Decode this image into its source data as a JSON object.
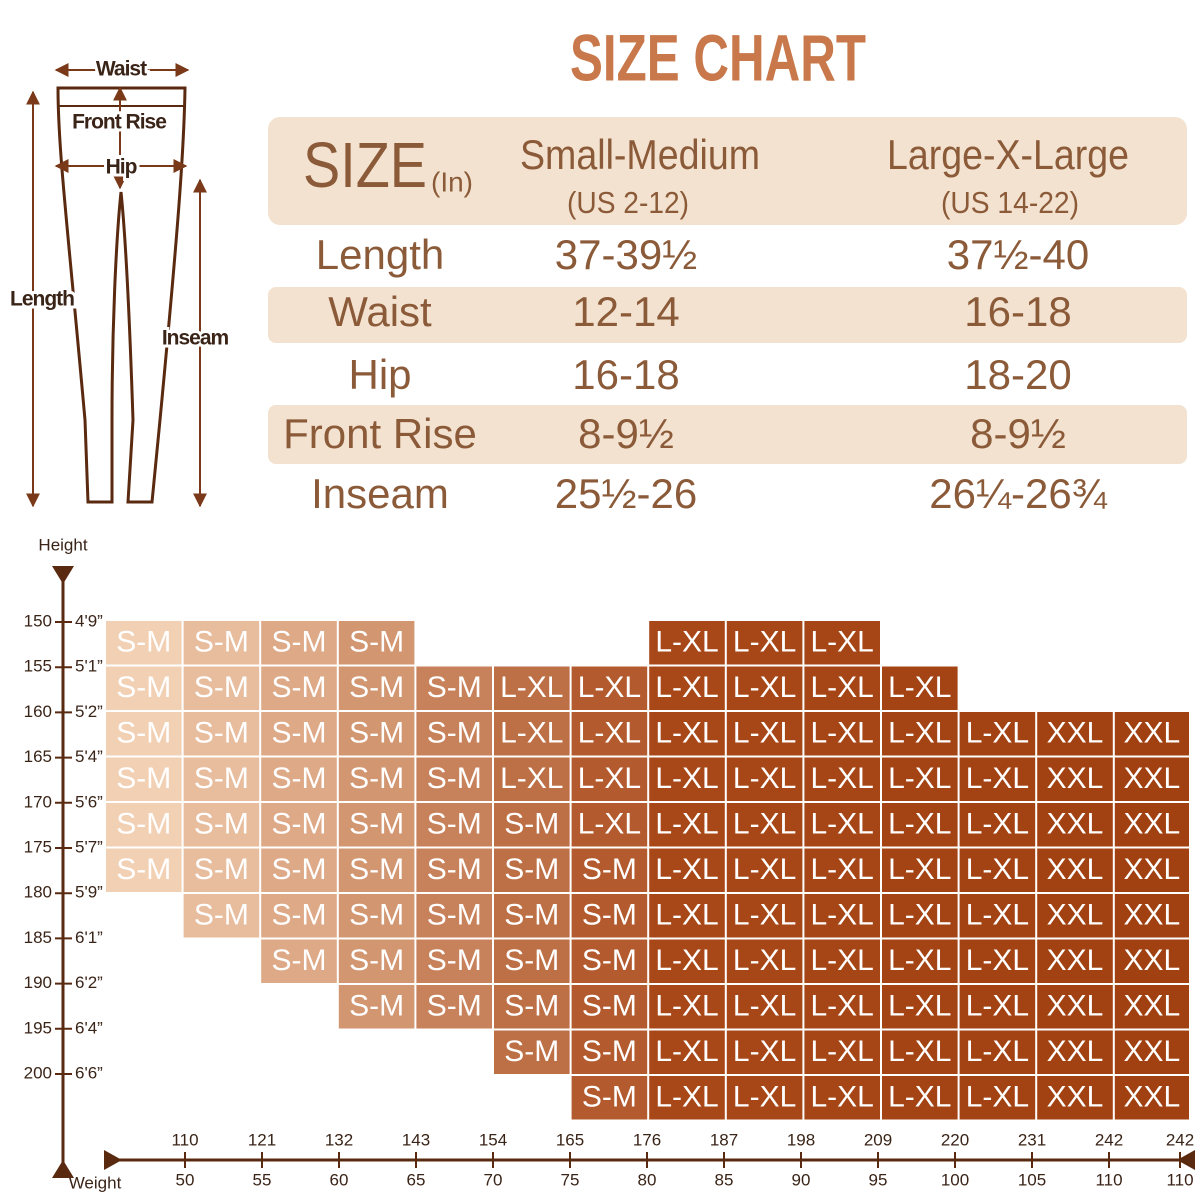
{
  "title": "SIZE CHART",
  "diagram": {
    "waist": "Waist",
    "front_rise": "Front Rise",
    "hip": "Hip",
    "length": "Length",
    "inseam": "Inseam"
  },
  "table": {
    "size": "SIZE",
    "unit": "(In)",
    "columns": [
      {
        "name": "Small-Medium",
        "sub": "(US 2-12)"
      },
      {
        "name": "Large-X-Large",
        "sub": "(US 14-22)"
      }
    ],
    "rows": [
      [
        "Length",
        "37-39½",
        "37½-40"
      ],
      [
        "Waist",
        "12-14",
        "16-18"
      ],
      [
        "Hip",
        "16-18",
        "18-20"
      ],
      [
        "Front Rise",
        "8-9½",
        "8-9½"
      ],
      [
        "Inseam",
        "25½-26",
        "26¼-26¾"
      ]
    ]
  },
  "grid": {
    "height_label": "Height",
    "weight_label": "Weight",
    "heights": [
      {
        "cm": "150",
        "ft": "4'9”"
      },
      {
        "cm": "155",
        "ft": "5'1”"
      },
      {
        "cm": "160",
        "ft": "5'2”"
      },
      {
        "cm": "165",
        "ft": "5'4”"
      },
      {
        "cm": "170",
        "ft": "5'6”"
      },
      {
        "cm": "175",
        "ft": "5'7”"
      },
      {
        "cm": "180",
        "ft": "5'9”"
      },
      {
        "cm": "185",
        "ft": "6'1”"
      },
      {
        "cm": "190",
        "ft": "6'2”"
      },
      {
        "cm": "195",
        "ft": "6'4”"
      },
      {
        "cm": "200",
        "ft": "6'6”"
      }
    ],
    "weights": [
      {
        "lb": "110",
        "kg": "50"
      },
      {
        "lb": "121",
        "kg": "55"
      },
      {
        "lb": "132",
        "kg": "60"
      },
      {
        "lb": "143",
        "kg": "65"
      },
      {
        "lb": "154",
        "kg": "70"
      },
      {
        "lb": "165",
        "kg": "75"
      },
      {
        "lb": "176",
        "kg": "80"
      },
      {
        "lb": "187",
        "kg": "85"
      },
      {
        "lb": "198",
        "kg": "90"
      },
      {
        "lb": "209",
        "kg": "95"
      },
      {
        "lb": "220",
        "kg": "100"
      },
      {
        "lb": "231",
        "kg": "105"
      },
      {
        "lb": "242",
        "kg": "110"
      },
      {
        "lb": "242",
        "kg": "110"
      }
    ],
    "rows": [
      [
        "S-M",
        "S-M",
        "S-M",
        "S-M",
        null,
        null,
        null,
        "L-XL",
        "L-XL",
        "L-XL",
        null,
        null,
        null,
        null
      ],
      [
        "S-M",
        "S-M",
        "S-M",
        "S-M",
        "S-M",
        "L-XL",
        "L-XL",
        "L-XL",
        "L-XL",
        "L-XL",
        "L-XL",
        null,
        null,
        null
      ],
      [
        "S-M",
        "S-M",
        "S-M",
        "S-M",
        "S-M",
        "L-XL",
        "L-XL",
        "L-XL",
        "L-XL",
        "L-XL",
        "L-XL",
        "L-XL",
        "XXL",
        "XXL"
      ],
      [
        "S-M",
        "S-M",
        "S-M",
        "S-M",
        "S-M",
        "L-XL",
        "L-XL",
        "L-XL",
        "L-XL",
        "L-XL",
        "L-XL",
        "L-XL",
        "XXL",
        "XXL"
      ],
      [
        "S-M",
        "S-M",
        "S-M",
        "S-M",
        "S-M",
        "S-M",
        "L-XL",
        "L-XL",
        "L-XL",
        "L-XL",
        "L-XL",
        "L-XL",
        "XXL",
        "XXL"
      ],
      [
        "S-M",
        "S-M",
        "S-M",
        "S-M",
        "S-M",
        "S-M",
        "S-M",
        "L-XL",
        "L-XL",
        "L-XL",
        "L-XL",
        "L-XL",
        "XXL",
        "XXL"
      ],
      [
        null,
        "S-M",
        "S-M",
        "S-M",
        "S-M",
        "S-M",
        "S-M",
        "L-XL",
        "L-XL",
        "L-XL",
        "L-XL",
        "L-XL",
        "XXL",
        "XXL"
      ],
      [
        null,
        null,
        "S-M",
        "S-M",
        "S-M",
        "S-M",
        "S-M",
        "L-XL",
        "L-XL",
        "L-XL",
        "L-XL",
        "L-XL",
        "XXL",
        "XXL"
      ],
      [
        null,
        null,
        null,
        "S-M",
        "S-M",
        "S-M",
        "S-M",
        "L-XL",
        "L-XL",
        "L-XL",
        "L-XL",
        "L-XL",
        "XXL",
        "XXL"
      ],
      [
        null,
        null,
        null,
        null,
        null,
        "S-M",
        "S-M",
        "L-XL",
        "L-XL",
        "L-XL",
        "L-XL",
        "L-XL",
        "XXL",
        "XXL"
      ],
      [
        null,
        null,
        null,
        null,
        null,
        null,
        "S-M",
        "L-XL",
        "L-XL",
        "L-XL",
        "L-XL",
        "L-XL",
        "XXL",
        "XXL"
      ]
    ]
  }
}
